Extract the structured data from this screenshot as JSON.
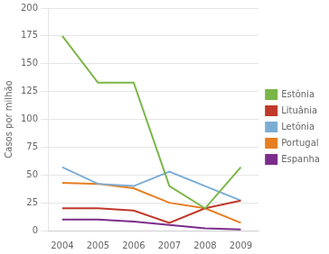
{
  "chart_data": {
    "type": "line",
    "x": [
      2004,
      2005,
      2006,
      2007,
      2008,
      2009
    ],
    "series": [
      {
        "name": "Estônia",
        "color": "#7ab648",
        "values": [
          175,
          133,
          133,
          40,
          20,
          57
        ]
      },
      {
        "name": "Lituânia",
        "color": "#c0392b",
        "values": [
          20,
          20,
          18,
          7,
          20,
          27
        ]
      },
      {
        "name": "Letônia",
        "color": "#7badd4",
        "values": [
          57,
          42,
          40,
          53,
          40,
          27
        ]
      },
      {
        "name": "Portugal",
        "color": "#e67e22",
        "values": [
          43,
          42,
          38,
          25,
          20,
          7
        ]
      },
      {
        "name": "Espanha",
        "color": "#7b2d8b",
        "values": [
          10,
          10,
          8,
          5,
          2,
          1
        ]
      }
    ],
    "ylabel": "Casos por milhão",
    "xlim": [
      2003.6,
      2009.5
    ],
    "xticks": [
      2004,
      2005,
      2006,
      2007,
      2008,
      2009
    ],
    "ylim": [
      0,
      200
    ],
    "yticks": [
      0,
      25,
      50,
      75,
      100,
      125,
      150,
      175,
      200
    ],
    "grid": "y",
    "legend": "right"
  }
}
